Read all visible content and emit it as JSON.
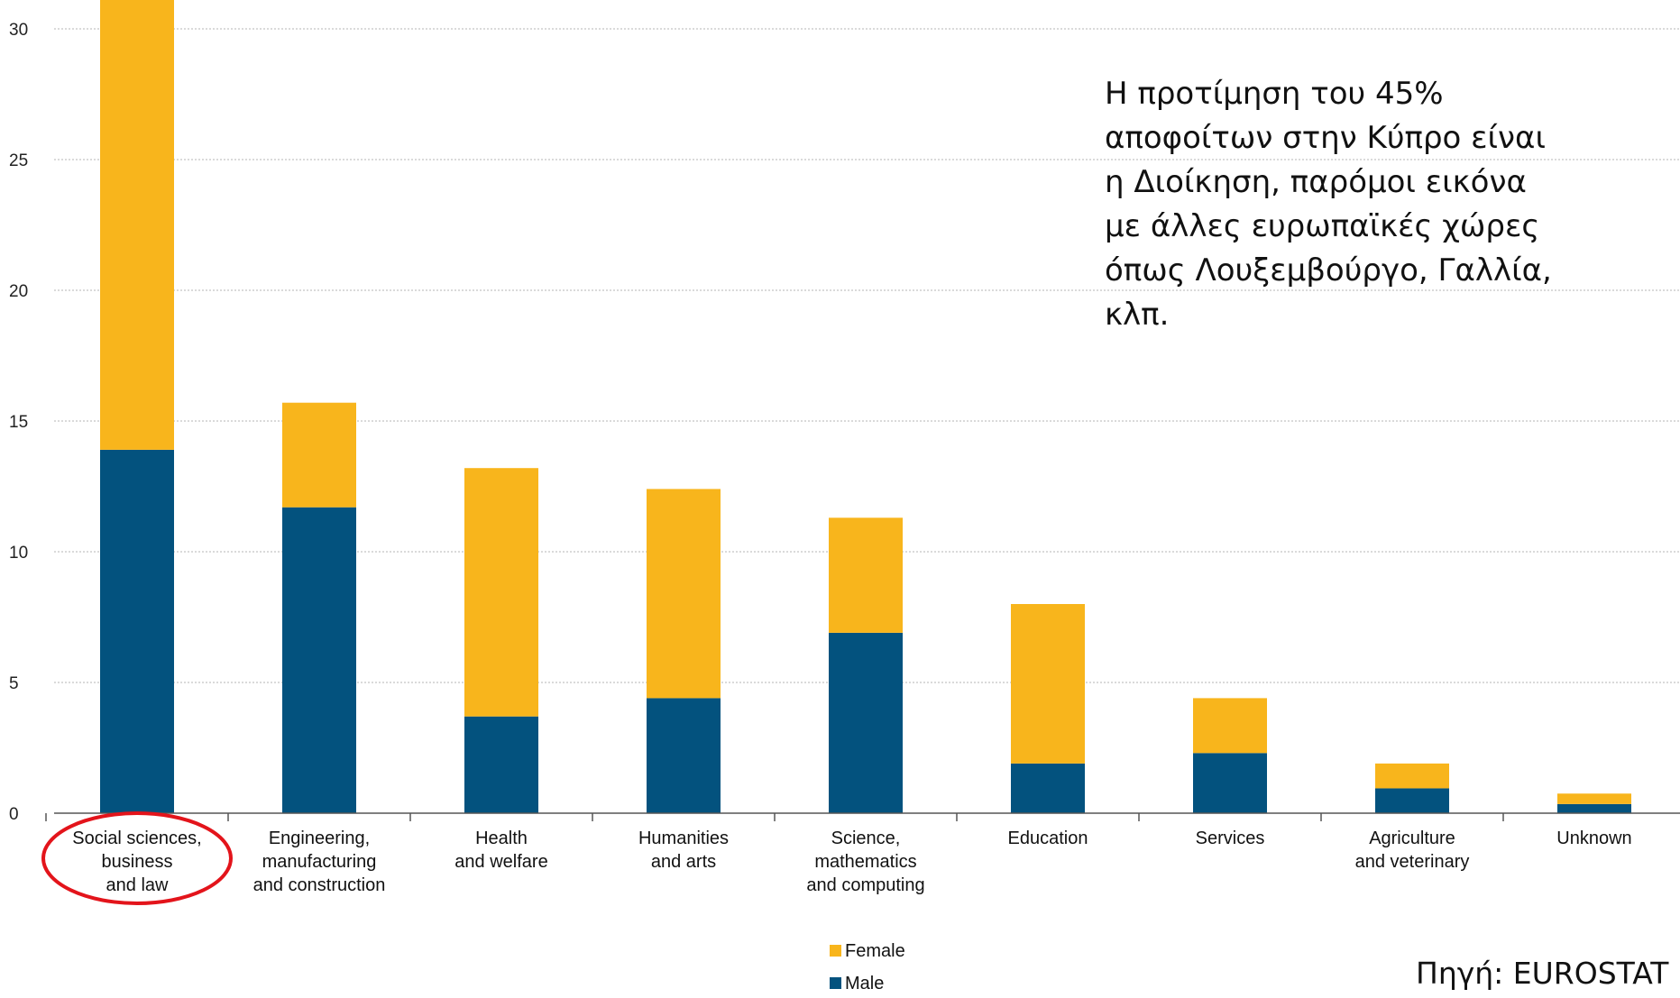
{
  "chart_data": {
    "type": "bar",
    "stacked": true,
    "categories": [
      [
        "Social sciences,",
        "business",
        "and law"
      ],
      [
        "Engineering,",
        "manufacturing",
        "and construction"
      ],
      [
        "Health",
        "and welfare"
      ],
      [
        "Humanities",
        "and arts"
      ],
      [
        "Science,",
        "mathematics",
        "and computing"
      ],
      [
        "Education"
      ],
      [
        "Services"
      ],
      [
        "Agriculture",
        "and veterinary"
      ],
      [
        "Unknown"
      ]
    ],
    "series": [
      {
        "name": "Male",
        "color": "#03527e",
        "values": [
          13.9,
          11.7,
          3.7,
          4.4,
          6.9,
          1.9,
          2.3,
          0.95,
          0.35
        ]
      },
      {
        "name": "Female",
        "color": "#f8b51c",
        "values": [
          17.5,
          4.0,
          9.5,
          8.0,
          4.4,
          6.1,
          2.1,
          0.95,
          0.4
        ]
      }
    ],
    "legend": [
      "Female",
      "Male"
    ],
    "legend_placement": "bottom-center",
    "ylim": [
      0,
      30
    ],
    "yticks": [
      "0",
      "5",
      "10",
      "15",
      "20",
      "25",
      "30"
    ],
    "grid": true,
    "highlight": "Social sciences, business and law (circled in red)"
  },
  "annotation_lines": [
    "Η προτίμηση του 45%",
    "αποφοίτων στην Κύπρο είναι",
    "η Διοίκηση, παρόμοι εικόνα",
    "με άλλες ευρωπαϊκές χώρες",
    "όπως Λουξεμβούργο, Γαλλία,",
    "κλπ."
  ],
  "source": "Πηγή: EUROSTAT",
  "highlight_color": "#e3141b"
}
